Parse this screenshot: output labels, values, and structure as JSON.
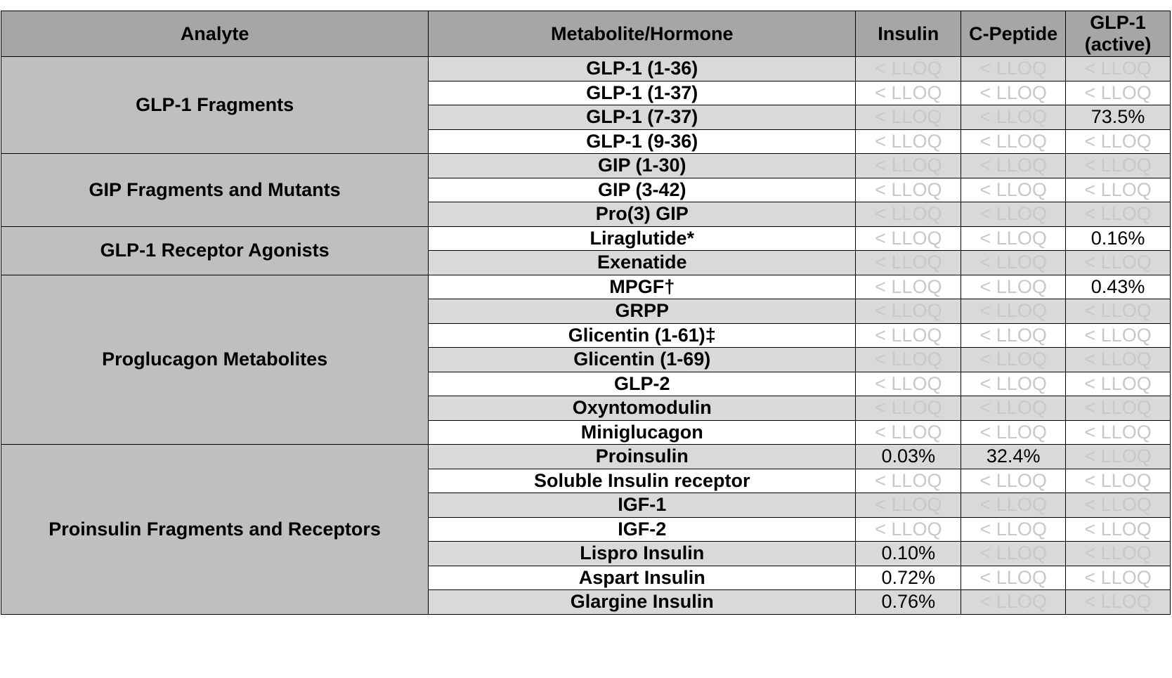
{
  "headers": {
    "analyte": "Analyte",
    "metabolite": "Metabolite/Hormone",
    "insulin": "Insulin",
    "cpeptide": "C-Peptide",
    "glp1_line1": "GLP-1",
    "glp1_line2": "(active)"
  },
  "groups": [
    {
      "name": "GLP-1 Fragments",
      "rows": [
        {
          "metabolite": "GLP-1 (1-36)",
          "insulin": "< LLOQ",
          "cpeptide": "< LLOQ",
          "glp1": "< LLOQ"
        },
        {
          "metabolite": "GLP-1 (1-37)",
          "insulin": "< LLOQ",
          "cpeptide": "< LLOQ",
          "glp1": "< LLOQ"
        },
        {
          "metabolite": "GLP-1 (7-37)",
          "insulin": "< LLOQ",
          "cpeptide": "< LLOQ",
          "glp1": "73.5%"
        },
        {
          "metabolite": "GLP-1 (9-36)",
          "insulin": "< LLOQ",
          "cpeptide": "< LLOQ",
          "glp1": "< LLOQ"
        }
      ]
    },
    {
      "name": "GIP Fragments and Mutants",
      "rows": [
        {
          "metabolite": "GIP (1-30)",
          "insulin": "< LLOQ",
          "cpeptide": "< LLOQ",
          "glp1": "< LLOQ"
        },
        {
          "metabolite": "GIP (3-42)",
          "insulin": "< LLOQ",
          "cpeptide": "< LLOQ",
          "glp1": "< LLOQ"
        },
        {
          "metabolite": "Pro(3) GIP",
          "insulin": "< LLOQ",
          "cpeptide": "< LLOQ",
          "glp1": "< LLOQ"
        }
      ]
    },
    {
      "name": "GLP-1 Receptor Agonists",
      "rows": [
        {
          "metabolite": "Liraglutide*",
          "insulin": "< LLOQ",
          "cpeptide": "< LLOQ",
          "glp1": "0.16%"
        },
        {
          "metabolite": "Exenatide",
          "insulin": "< LLOQ",
          "cpeptide": "< LLOQ",
          "glp1": "< LLOQ"
        }
      ]
    },
    {
      "name": "Proglucagon Metabolites",
      "rows": [
        {
          "metabolite": "MPGF†",
          "insulin": "< LLOQ",
          "cpeptide": "< LLOQ",
          "glp1": "0.43%"
        },
        {
          "metabolite": "GRPP",
          "insulin": "< LLOQ",
          "cpeptide": "< LLOQ",
          "glp1": "< LLOQ"
        },
        {
          "metabolite": "Glicentin (1-61)‡",
          "insulin": "< LLOQ",
          "cpeptide": "< LLOQ",
          "glp1": "< LLOQ"
        },
        {
          "metabolite": "Glicentin (1-69)",
          "insulin": "< LLOQ",
          "cpeptide": "< LLOQ",
          "glp1": "< LLOQ"
        },
        {
          "metabolite": "GLP-2",
          "insulin": "< LLOQ",
          "cpeptide": "< LLOQ",
          "glp1": "< LLOQ"
        },
        {
          "metabolite": "Oxyntomodulin",
          "insulin": "< LLOQ",
          "cpeptide": "< LLOQ",
          "glp1": "< LLOQ"
        },
        {
          "metabolite": "Miniglucagon",
          "insulin": "< LLOQ",
          "cpeptide": "< LLOQ",
          "glp1": "< LLOQ"
        }
      ]
    },
    {
      "name": "Proinsulin Fragments and Receptors",
      "rows": [
        {
          "metabolite": "Proinsulin",
          "insulin": "0.03%",
          "cpeptide": "32.4%",
          "glp1": "< LLOQ"
        },
        {
          "metabolite": "Soluble Insulin receptor",
          "insulin": "< LLOQ",
          "cpeptide": "< LLOQ",
          "glp1": "< LLOQ"
        },
        {
          "metabolite": "IGF-1",
          "insulin": "< LLOQ",
          "cpeptide": "< LLOQ",
          "glp1": "< LLOQ"
        },
        {
          "metabolite": "IGF-2",
          "insulin": "< LLOQ",
          "cpeptide": "< LLOQ",
          "glp1": "< LLOQ"
        },
        {
          "metabolite": "Lispro Insulin",
          "insulin": "0.10%",
          "cpeptide": "< LLOQ",
          "glp1": "< LLOQ"
        },
        {
          "metabolite": "Aspart Insulin",
          "insulin": "0.72%",
          "cpeptide": "< LLOQ",
          "glp1": "< LLOQ"
        },
        {
          "metabolite": "Glargine Insulin",
          "insulin": "0.76%",
          "cpeptide": "< LLOQ",
          "glp1": "< LLOQ"
        }
      ]
    }
  ],
  "colors": {
    "header_bg": "#a6a6a6",
    "group_bg": "#bfbfbf",
    "row_shaded": "#d9d9d9",
    "row_plain": "#ffffff",
    "lloq_text": "#c8c8c8"
  }
}
